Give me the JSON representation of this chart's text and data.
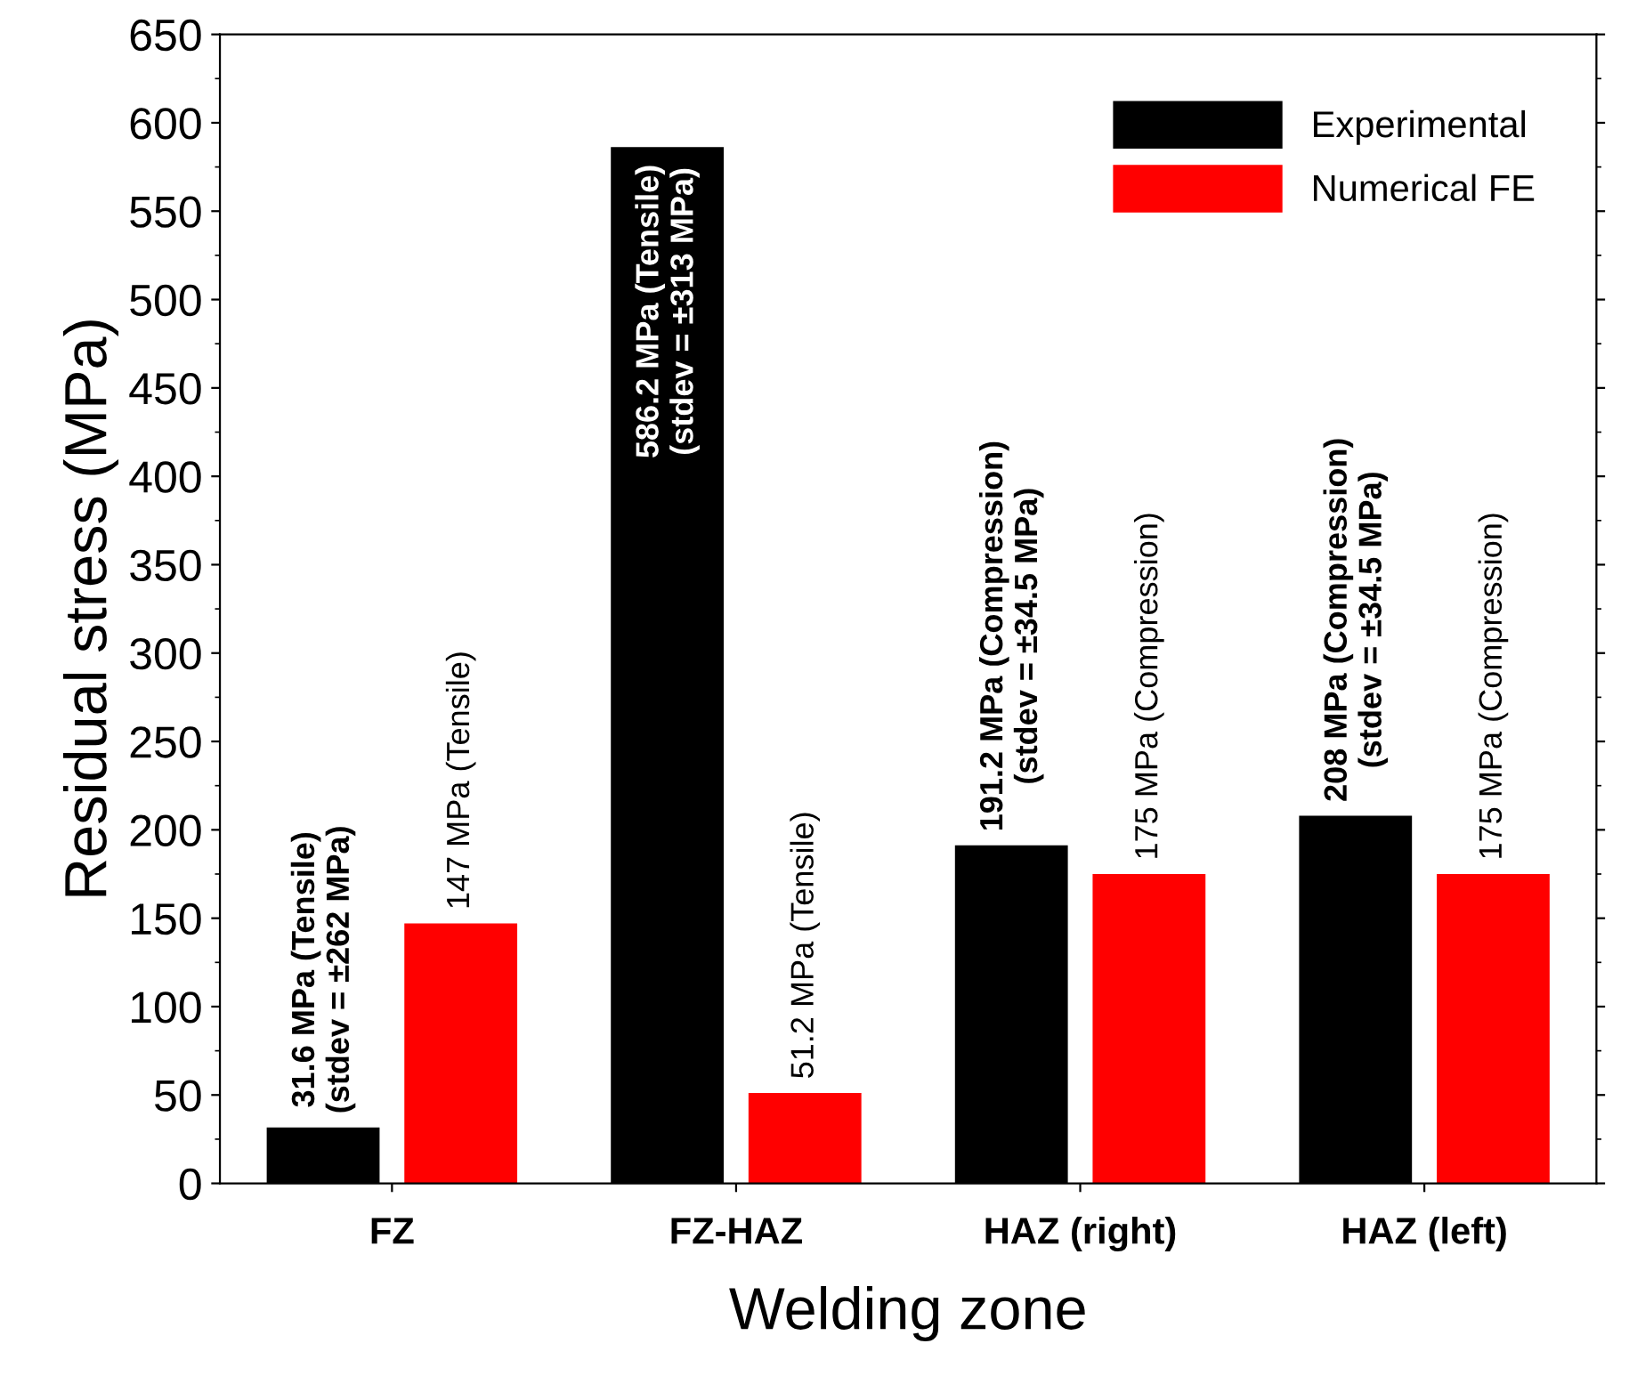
{
  "chart_data": {
    "type": "bar",
    "xlabel": "Welding zone",
    "ylabel": "Residual stress (MPa)",
    "categories": [
      "FZ",
      "FZ-HAZ",
      "HAZ (right)",
      "HAZ (left)"
    ],
    "series": [
      {
        "name": "Experimental",
        "color": "#000000",
        "values": [
          31.6,
          586.2,
          191.2,
          208
        ],
        "value_labels": [
          "31.6 MPa (Tensile)\n(stdev = ±262 MPa)",
          "586.2 MPa (Tensile)\n(stdev = ±313 MPa)",
          "191.2 MPa (Compression)\n(stdev = ±34.5 MPa)",
          "208 MPa (Compression)\n(stdev = ±34.5 MPa)"
        ]
      },
      {
        "name": "Numerical FE",
        "color": "#ff0000",
        "values": [
          147,
          51.2,
          175,
          175
        ],
        "value_labels": [
          "147 MPa (Tensile)",
          "51.2 MPa (Tensile)",
          "175 MPa (Compression)",
          "175 MPa (Compression)"
        ]
      }
    ],
    "ylim": [
      0,
      650
    ],
    "yticks": [
      0,
      50,
      100,
      150,
      200,
      250,
      300,
      350,
      400,
      450,
      500,
      550,
      600,
      650
    ],
    "grid": false,
    "legend": "top right"
  }
}
